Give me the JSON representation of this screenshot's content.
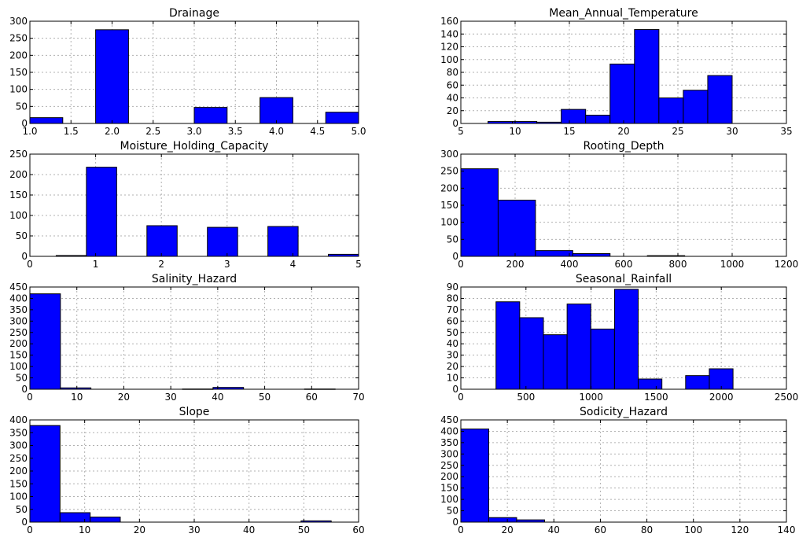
{
  "figure": {
    "bar_color": "#0000ff",
    "edge_color": "#000000",
    "grid": true,
    "layout": "4 rows x 2 columns"
  },
  "chart_data": [
    {
      "type": "bar",
      "title": "Drainage",
      "bins": [
        [
          1.0,
          1.4
        ],
        [
          1.8,
          2.2
        ],
        [
          3.0,
          3.4
        ],
        [
          3.8,
          4.2
        ],
        [
          4.6,
          5.0
        ]
      ],
      "values": [
        17,
        275,
        47,
        76,
        33
      ],
      "xlim": [
        1.0,
        5.0
      ],
      "ylim": [
        0,
        300
      ],
      "xticks": [
        "1.0",
        "1.5",
        "2.0",
        "2.5",
        "3.0",
        "3.5",
        "4.0",
        "4.5",
        "5.0"
      ],
      "yticks": [
        "0",
        "50",
        "100",
        "150",
        "200",
        "250",
        "300"
      ]
    },
    {
      "type": "bar",
      "title": "Mean_Annual_Temperature",
      "bins": [
        [
          7.5,
          9.75
        ],
        [
          9.75,
          12.0
        ],
        [
          12.0,
          14.25
        ],
        [
          14.25,
          16.5
        ],
        [
          16.5,
          18.75
        ],
        [
          18.75,
          21.0
        ],
        [
          21.0,
          23.25
        ],
        [
          23.25,
          25.5
        ],
        [
          25.5,
          27.75
        ],
        [
          27.75,
          30.0
        ]
      ],
      "values": [
        3,
        3,
        2,
        22,
        13,
        93,
        147,
        40,
        52,
        75
      ],
      "xlim": [
        5,
        35
      ],
      "ylim": [
        0,
        160
      ],
      "xticks": [
        "5",
        "10",
        "15",
        "20",
        "25",
        "30",
        "35"
      ],
      "yticks": [
        "0",
        "20",
        "40",
        "60",
        "80",
        "100",
        "120",
        "140",
        "160"
      ]
    },
    {
      "type": "bar",
      "title": "Moisture_Holding_Capacity",
      "bins": [
        [
          0.4,
          0.86
        ],
        [
          0.86,
          1.32
        ],
        [
          1.78,
          2.24
        ],
        [
          2.7,
          3.16
        ],
        [
          3.62,
          4.08
        ],
        [
          4.54,
          5.0
        ]
      ],
      "values": [
        2,
        218,
        75,
        71,
        73,
        5
      ],
      "xlim": [
        0,
        5
      ],
      "ylim": [
        0,
        250
      ],
      "xticks": [
        "0",
        "1",
        "2",
        "3",
        "4",
        "5"
      ],
      "yticks": [
        "0",
        "50",
        "100",
        "150",
        "200",
        "250"
      ]
    },
    {
      "type": "bar",
      "title": "Rooting_Depth",
      "bins": [
        [
          0,
          137.5
        ],
        [
          137.5,
          275
        ],
        [
          275,
          412.5
        ],
        [
          412.5,
          550
        ],
        [
          687.5,
          825
        ]
      ],
      "values": [
        257,
        165,
        17,
        8,
        2
      ],
      "xlim": [
        0,
        1200
      ],
      "ylim": [
        0,
        300
      ],
      "xticks": [
        "0",
        "200",
        "400",
        "600",
        "800",
        "1000",
        "1200"
      ],
      "yticks": [
        "0",
        "50",
        "100",
        "150",
        "200",
        "250",
        "300"
      ]
    },
    {
      "type": "bar",
      "title": "Salinity_Hazard",
      "bins": [
        [
          0,
          6.5
        ],
        [
          6.5,
          13
        ],
        [
          32.5,
          39
        ],
        [
          39,
          45.5
        ],
        [
          58.5,
          65
        ]
      ],
      "values": [
        420,
        6,
        1,
        8,
        1
      ],
      "xlim": [
        0,
        70
      ],
      "ylim": [
        0,
        450
      ],
      "xticks": [
        "0",
        "10",
        "20",
        "30",
        "40",
        "50",
        "60",
        "70"
      ],
      "yticks": [
        "0",
        "50",
        "100",
        "150",
        "200",
        "250",
        "300",
        "350",
        "400",
        "450"
      ]
    },
    {
      "type": "bar",
      "title": "Seasonal_Rainfall",
      "bins": [
        [
          270,
          452
        ],
        [
          452,
          634
        ],
        [
          634,
          816
        ],
        [
          816,
          998
        ],
        [
          998,
          1180
        ],
        [
          1180,
          1362
        ],
        [
          1362,
          1544
        ],
        [
          1726,
          1908
        ],
        [
          1908,
          2090
        ]
      ],
      "values": [
        77,
        63,
        48,
        75,
        53,
        88,
        9,
        12,
        18
      ],
      "xlim": [
        0,
        2500
      ],
      "ylim": [
        0,
        90
      ],
      "xticks": [
        "0",
        "500",
        "1000",
        "1500",
        "2000",
        "2500"
      ],
      "yticks": [
        "0",
        "10",
        "20",
        "30",
        "40",
        "50",
        "60",
        "70",
        "80",
        "90"
      ]
    },
    {
      "type": "bar",
      "title": "Slope",
      "bins": [
        [
          0,
          5.5
        ],
        [
          5.5,
          11
        ],
        [
          11,
          16.5
        ],
        [
          49.5,
          55
        ]
      ],
      "values": [
        378,
        37,
        20,
        5
      ],
      "xlim": [
        0,
        60
      ],
      "ylim": [
        0,
        400
      ],
      "xticks": [
        "0",
        "10",
        "20",
        "30",
        "40",
        "50",
        "60"
      ],
      "yticks": [
        "0",
        "50",
        "100",
        "150",
        "200",
        "250",
        "300",
        "350",
        "400"
      ]
    },
    {
      "type": "bar",
      "title": "Sodicity_Hazard",
      "bins": [
        [
          0,
          12
        ],
        [
          12,
          24
        ],
        [
          24,
          36
        ]
      ],
      "values": [
        410,
        20,
        10
      ],
      "xlim": [
        0,
        140
      ],
      "ylim": [
        0,
        450
      ],
      "xticks": [
        "0",
        "20",
        "40",
        "60",
        "80",
        "100",
        "120",
        "140"
      ],
      "yticks": [
        "0",
        "50",
        "100",
        "150",
        "200",
        "250",
        "300",
        "350",
        "400",
        "450"
      ]
    }
  ]
}
